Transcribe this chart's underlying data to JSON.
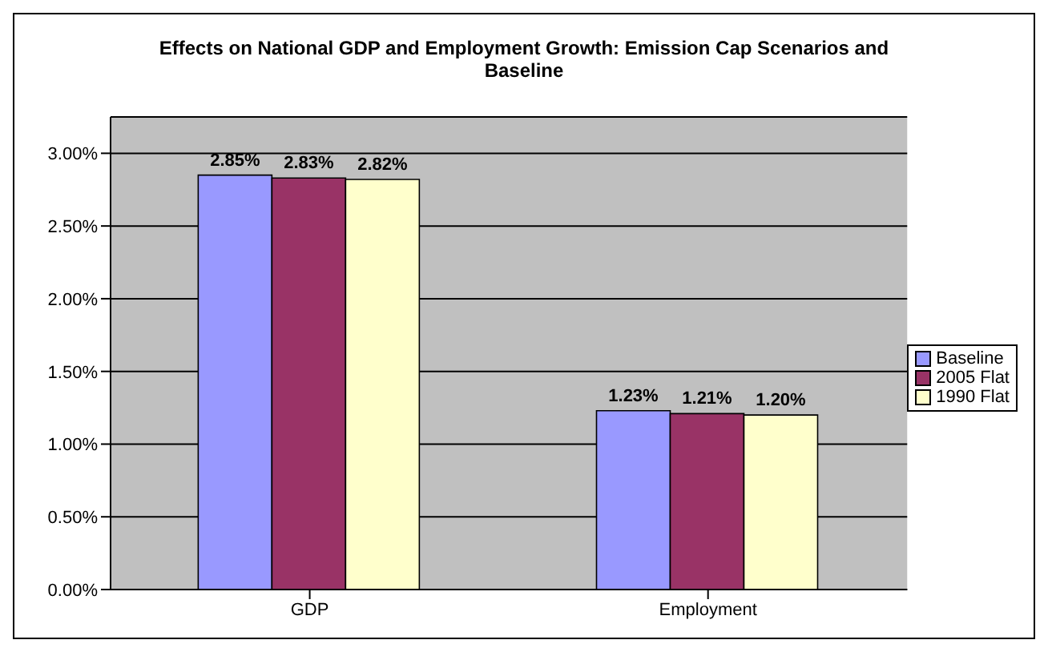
{
  "chart_data": {
    "type": "bar",
    "title": "Effects on National GDP and Employment Growth: Emission Cap Scenarios and Baseline",
    "categories": [
      "GDP",
      "Employment"
    ],
    "series": [
      {
        "name": "Baseline",
        "color": "#9999ff",
        "values": [
          2.85,
          1.23
        ],
        "value_labels": [
          "2.85%",
          "1.23%"
        ]
      },
      {
        "name": "2005 Flat",
        "color": "#993366",
        "values": [
          2.83,
          1.21
        ],
        "value_labels": [
          "2.83%",
          "1.21%"
        ]
      },
      {
        "name": "1990 Flat",
        "color": "#ffffcc",
        "values": [
          2.82,
          1.2
        ],
        "value_labels": [
          "2.82%",
          "1.20%"
        ]
      }
    ],
    "ylim": [
      0,
      3.25
    ],
    "yticks": [
      {
        "value": 0,
        "label": "0.00%"
      },
      {
        "value": 0.5,
        "label": "0.50%"
      },
      {
        "value": 1,
        "label": "1.00%"
      },
      {
        "value": 1.5,
        "label": "1.50%"
      },
      {
        "value": 2,
        "label": "2.00%"
      },
      {
        "value": 2.5,
        "label": "2.50%"
      },
      {
        "value": 3,
        "label": "3.00%"
      }
    ],
    "grid": "y",
    "legend": "right"
  }
}
